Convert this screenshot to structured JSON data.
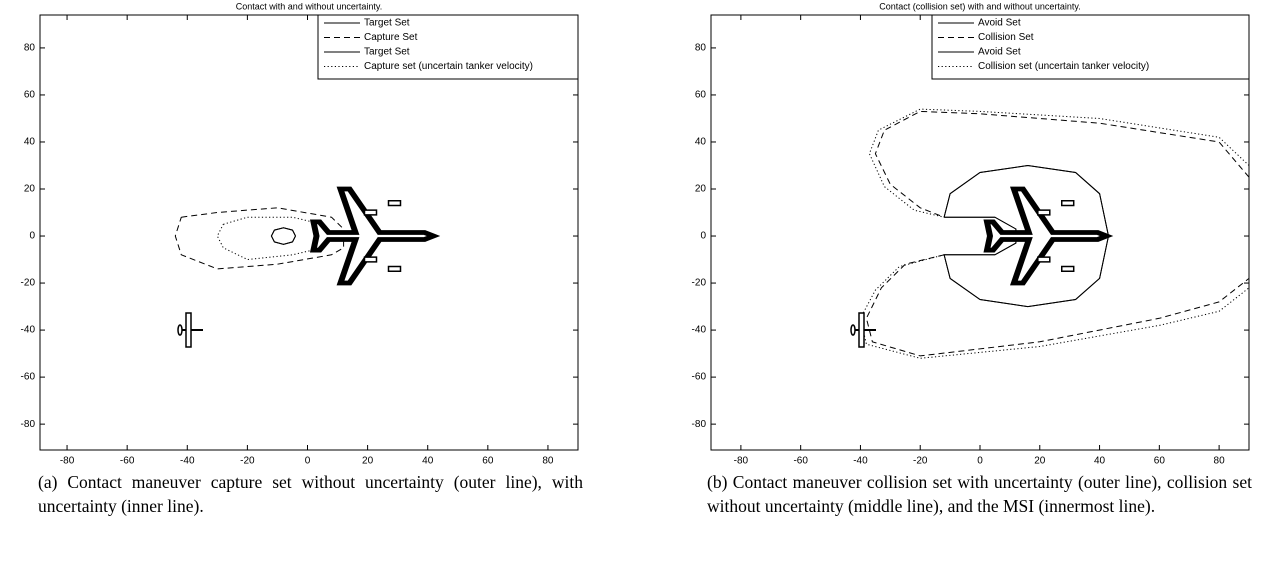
{
  "chart_data": [
    {
      "type": "line",
      "title": "Contact with and without uncertainty.",
      "caption": "(a) Contact maneuver capture set without uncertainty (outer line), with uncertainty (inner line).",
      "xlim": [
        -89,
        90
      ],
      "ylim": [
        -91,
        94
      ],
      "xticks": [
        -80,
        -60,
        -40,
        -20,
        0,
        20,
        40,
        60,
        80
      ],
      "yticks": [
        -80,
        -60,
        -40,
        -20,
        0,
        20,
        40,
        60,
        80
      ],
      "legend": "upper right",
      "series": [
        {
          "name": "Target Set",
          "color": "#000000",
          "line_style": "solid",
          "x": [
            -4,
            -5,
            -8,
            -11,
            -12,
            -11,
            -8,
            -5,
            -4
          ],
          "values": [
            0,
            2.5,
            3.5,
            2.5,
            0,
            -2.5,
            -3.5,
            -2.5,
            0
          ]
        },
        {
          "name": "Capture Set",
          "color": "#000000",
          "line_style": "dashed",
          "x": [
            -42,
            -30,
            -10,
            8,
            12,
            12,
            8,
            -10,
            -30,
            -42,
            -44,
            -42
          ],
          "values": [
            8,
            10,
            12,
            8,
            3,
            -5,
            -8,
            -12,
            -14,
            -8,
            0,
            8
          ]
        },
        {
          "name": "Target Set",
          "color": "#000000",
          "line_style": "solid",
          "x": [
            -4,
            -5,
            -8,
            -11,
            -12,
            -11,
            -8,
            -5,
            -4
          ],
          "values": [
            0,
            2.5,
            3.5,
            2.5,
            0,
            -2.5,
            -3.5,
            -2.5,
            0
          ]
        },
        {
          "name": "Capture set (uncertain tanker velocity)",
          "color": "#000000",
          "line_style": "dotted",
          "x": [
            -28,
            -20,
            -5,
            5,
            8,
            5,
            -5,
            -20,
            -28,
            -30,
            -28
          ],
          "values": [
            5,
            8,
            8,
            5,
            0,
            -5,
            -8,
            -10,
            -5,
            0,
            5
          ]
        }
      ]
    },
    {
      "type": "line",
      "title": "Contact (collision set) with and without uncertainty.",
      "caption": "(b) Contact maneuver collision set with uncertainty (outer line), collision set without uncertainty (middle line), and the MSI (innermost line).",
      "xlim": [
        -90,
        90
      ],
      "ylim": [
        -91,
        94
      ],
      "xticks": [
        -80,
        -60,
        -40,
        -20,
        0,
        20,
        40,
        60,
        80
      ],
      "yticks": [
        -80,
        -60,
        -40,
        -20,
        0,
        20,
        40,
        60,
        80
      ],
      "legend": "upper right",
      "series": [
        {
          "name": "Avoid Set",
          "color": "#000000",
          "line_style": "solid",
          "x": [
            -12,
            -10,
            0,
            16,
            32,
            40,
            43,
            40,
            32,
            16,
            0,
            -10,
            -12,
            5,
            12,
            12,
            5,
            -12
          ],
          "values": [
            8,
            18,
            27,
            30,
            27,
            18,
            0,
            -18,
            -27,
            -30,
            -27,
            -18,
            -8,
            -8,
            -3,
            3,
            8,
            8
          ]
        },
        {
          "name": "Collision Set",
          "color": "#000000",
          "line_style": "dashed",
          "x": [
            90,
            80,
            40,
            0,
            -20,
            -32,
            -35,
            -30,
            -20,
            -12,
            null,
            -12,
            -25,
            -33,
            -38,
            -36,
            -20,
            20,
            60,
            80,
            90
          ],
          "values": [
            25,
            40,
            48,
            52,
            53,
            45,
            35,
            22,
            12,
            8,
            null,
            -8,
            -12,
            -22,
            -35,
            -45,
            -51,
            -45,
            -35,
            -28,
            -18
          ]
        },
        {
          "name": "Avoid Set",
          "color": "#000000",
          "line_style": "solid",
          "x": [
            -12,
            -10,
            0,
            16,
            32,
            40,
            43,
            40,
            32,
            16,
            0,
            -10,
            -12,
            5,
            12,
            12,
            5,
            -12
          ],
          "values": [
            8,
            18,
            27,
            30,
            27,
            18,
            0,
            -18,
            -27,
            -30,
            -27,
            -18,
            -8,
            -8,
            -3,
            3,
            8,
            8
          ]
        },
        {
          "name": "Collision set (uncertain tanker velocity)",
          "color": "#000000",
          "line_style": "dotted",
          "x": [
            90,
            80,
            40,
            0,
            -20,
            -34,
            -37,
            -32,
            -22,
            -12,
            null,
            -12,
            -27,
            -35,
            -40,
            -38,
            -20,
            20,
            60,
            80,
            90
          ],
          "values": [
            30,
            42,
            50,
            53,
            54,
            45,
            35,
            21,
            11,
            8,
            null,
            -8,
            -13,
            -23,
            -35,
            -46,
            -52,
            -47,
            -38,
            -32,
            -22
          ]
        }
      ]
    }
  ]
}
